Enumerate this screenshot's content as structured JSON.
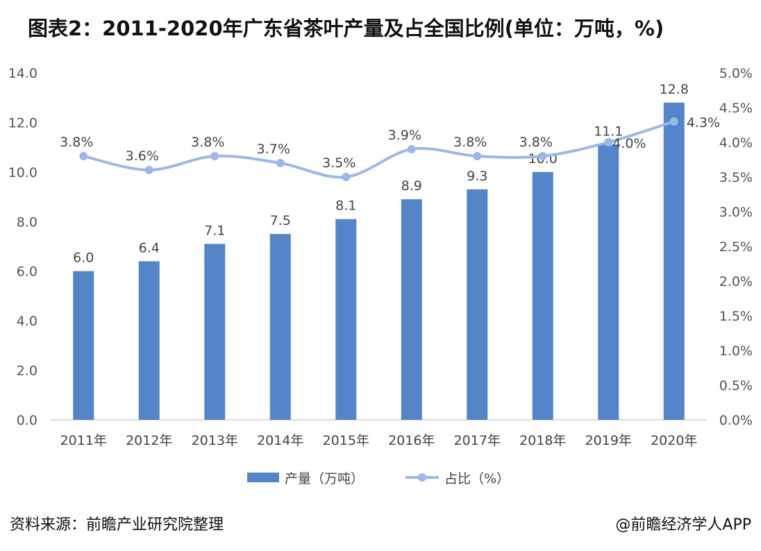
{
  "title": "图表2：2011-2020年广东省茶叶产量及占全国比例(单位：万吨，%)",
  "source": "资料来源：前瞻产业研究院整理",
  "credit": "@前瞻经济学人APP",
  "colors": {
    "bar": "#5585c9",
    "line": "#9bb8ea",
    "axis": "#d0d0d0"
  },
  "chart_data": {
    "type": "bar+line",
    "categories": [
      "2011年",
      "2012年",
      "2013年",
      "2014年",
      "2015年",
      "2016年",
      "2017年",
      "2018年",
      "2019年",
      "2020年"
    ],
    "series": [
      {
        "name": "产量（万吨）",
        "type": "bar",
        "axis": "left",
        "values": [
          6.0,
          6.4,
          7.1,
          7.5,
          8.1,
          8.9,
          9.3,
          10.0,
          11.1,
          12.8
        ],
        "labels": [
          "6.0",
          "6.4",
          "7.1",
          "7.5",
          "8.1",
          "8.9",
          "9.3",
          "10.0",
          "11.1",
          "12.8"
        ]
      },
      {
        "name": "占比（%）",
        "type": "line",
        "axis": "right",
        "values": [
          3.8,
          3.6,
          3.8,
          3.7,
          3.5,
          3.9,
          3.8,
          3.8,
          4.0,
          4.3
        ],
        "labels": [
          "3.8%",
          "3.6%",
          "3.8%",
          "3.7%",
          "3.5%",
          "3.9%",
          "3.8%",
          "3.8%",
          "4.0%",
          "4.3%"
        ]
      }
    ],
    "y_left": {
      "ylim": [
        0,
        14
      ],
      "ticks": [
        "0.0",
        "2.0",
        "4.0",
        "6.0",
        "8.0",
        "10.0",
        "12.0",
        "14.0"
      ]
    },
    "y_right": {
      "ylim": [
        0,
        5
      ],
      "ticks": [
        "0.0%",
        "0.5%",
        "1.0%",
        "1.5%",
        "2.0%",
        "2.5%",
        "3.0%",
        "3.5%",
        "4.0%",
        "4.5%",
        "5.0%"
      ]
    },
    "grid": false,
    "legend_position": "bottom"
  }
}
